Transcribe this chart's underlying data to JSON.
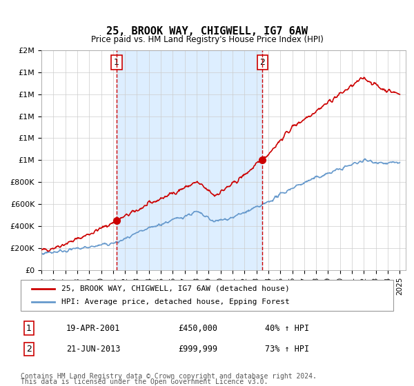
{
  "title": "25, BROOK WAY, CHIGWELL, IG7 6AW",
  "subtitle": "Price paid vs. HM Land Registry's House Price Index (HPI)",
  "red_label": "25, BROOK WAY, CHIGWELL, IG7 6AW (detached house)",
  "blue_label": "HPI: Average price, detached house, Epping Forest",
  "marker1_date": "19-APR-2001",
  "marker1_price": 450000,
  "marker1_hpi": "40% ↑ HPI",
  "marker2_date": "21-JUN-2013",
  "marker2_price": 999999,
  "marker2_hpi": "73% ↑ HPI",
  "footnote1": "Contains HM Land Registry data © Crown copyright and database right 2024.",
  "footnote2": "This data is licensed under the Open Government Licence v3.0.",
  "xmin": 1995.0,
  "xmax": 2025.5,
  "ymin": 0,
  "ymax": 2000000,
  "red_color": "#cc0000",
  "blue_color": "#6699cc",
  "shaded_region_color": "#ddeeff",
  "grid_color": "#cccccc",
  "marker1_x": 2001.3,
  "marker2_x": 2013.5
}
